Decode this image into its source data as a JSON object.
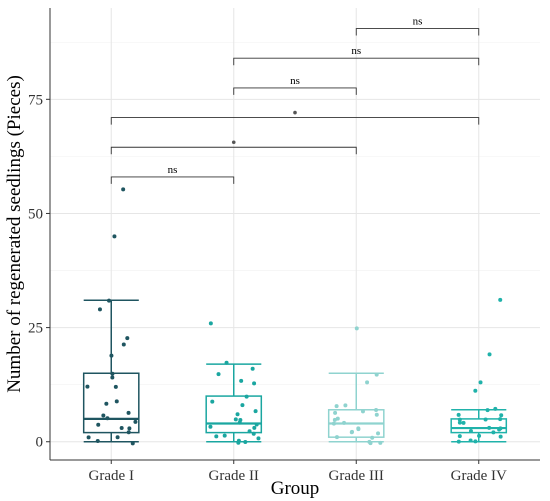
{
  "chart_data": {
    "type": "boxplot",
    "title": "",
    "xlabel": "Group",
    "ylabel": "Number of regenerated seedlings (Pieces)",
    "ylim": [
      -4,
      95
    ],
    "yticks": [
      0,
      25,
      50,
      75
    ],
    "ytick_labels": [
      "0",
      "25",
      "50",
      "75"
    ],
    "grid": true,
    "categories": [
      "Grade I",
      "Grade II",
      "Grade III",
      "Grade IV"
    ],
    "series": [
      {
        "color": "#1f5560",
        "box": {
          "lower_whisker": 0,
          "q1": 2,
          "median": 5,
          "q3": 15,
          "upper_whisker": 31
        },
        "points": [
          55,
          45,
          31,
          29,
          23,
          21,
          19,
          15,
          14,
          12,
          12,
          9,
          8,
          6,
          6,
          5,
          4,
          4,
          3,
          3,
          2,
          1,
          1,
          0,
          0
        ]
      },
      {
        "color": "#1aa6a0",
        "box": {
          "lower_whisker": 0,
          "q1": 2,
          "median": 4,
          "q3": 10,
          "upper_whisker": 17
        },
        "points": [
          26,
          17,
          16,
          15,
          13,
          13,
          10,
          9,
          8,
          7,
          6,
          5,
          5,
          4,
          4,
          3,
          3,
          2,
          2,
          1,
          1,
          1,
          0,
          0,
          0
        ]
      },
      {
        "color": "#8fd3cf",
        "box": {
          "lower_whisker": 0,
          "q1": 1,
          "median": 4,
          "q3": 7,
          "upper_whisker": 15
        },
        "points": [
          25,
          15,
          13,
          8,
          8,
          7,
          7,
          6,
          6,
          5,
          5,
          4,
          4,
          3,
          3,
          2,
          2,
          2,
          1,
          1,
          0,
          0,
          0
        ]
      },
      {
        "color": "#20b2aa",
        "box": {
          "lower_whisker": 0,
          "q1": 2,
          "median": 3,
          "q3": 5,
          "upper_whisker": 7
        },
        "points": [
          31,
          19,
          13,
          11,
          7,
          7,
          6,
          6,
          5,
          5,
          5,
          4,
          4,
          3,
          3,
          3,
          2,
          2,
          1,
          1,
          1,
          0,
          0,
          0
        ]
      }
    ],
    "comparisons": [
      {
        "from": 0,
        "to": 1,
        "y": 58,
        "label": "ns"
      },
      {
        "from": 0,
        "to": 2,
        "y": 64.5,
        "label": "*"
      },
      {
        "from": 0,
        "to": 3,
        "y": 71,
        "label": "*"
      },
      {
        "from": 1,
        "to": 2,
        "y": 77.5,
        "label": "ns"
      },
      {
        "from": 1,
        "to": 3,
        "y": 84,
        "label": "ns"
      },
      {
        "from": 2,
        "to": 3,
        "y": 90.5,
        "label": "ns"
      }
    ]
  }
}
